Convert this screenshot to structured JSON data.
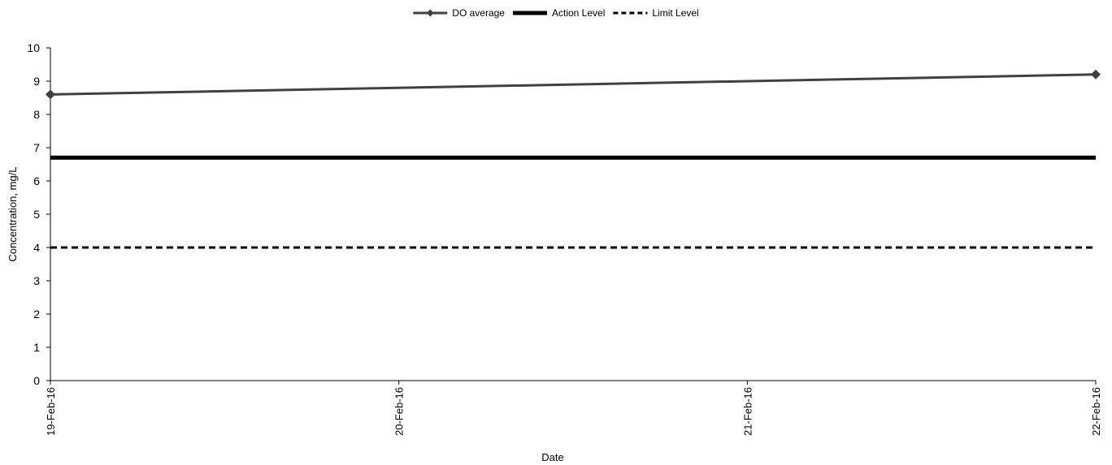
{
  "chart_data": {
    "type": "line",
    "x": [
      "19-Feb-16",
      "20-Feb-16",
      "21-Feb-16",
      "22-Feb-16"
    ],
    "series": [
      {
        "name": "DO average",
        "points": [
          {
            "x": "19-Feb-16",
            "y": 8.6
          },
          {
            "x": "22-Feb-16",
            "y": 9.2
          }
        ],
        "color": "#404040",
        "style": "line-diamond-markers"
      },
      {
        "name": "Action Level",
        "points": [
          {
            "x": "19-Feb-16",
            "y": 6.7
          },
          {
            "x": "22-Feb-16",
            "y": 6.7
          }
        ],
        "color": "#000000",
        "style": "thick-solid"
      },
      {
        "name": "Limit Level",
        "points": [
          {
            "x": "19-Feb-16",
            "y": 4.0
          },
          {
            "x": "22-Feb-16",
            "y": 4.0
          }
        ],
        "color": "#000000",
        "style": "dashed"
      }
    ],
    "xlabel": "Date",
    "ylabel": "Concentration, mg/L",
    "ylim": [
      0,
      10
    ],
    "yticks": [
      0,
      1,
      2,
      3,
      4,
      5,
      6,
      7,
      8,
      9,
      10
    ],
    "grid": false,
    "legend_position": "top-center"
  }
}
